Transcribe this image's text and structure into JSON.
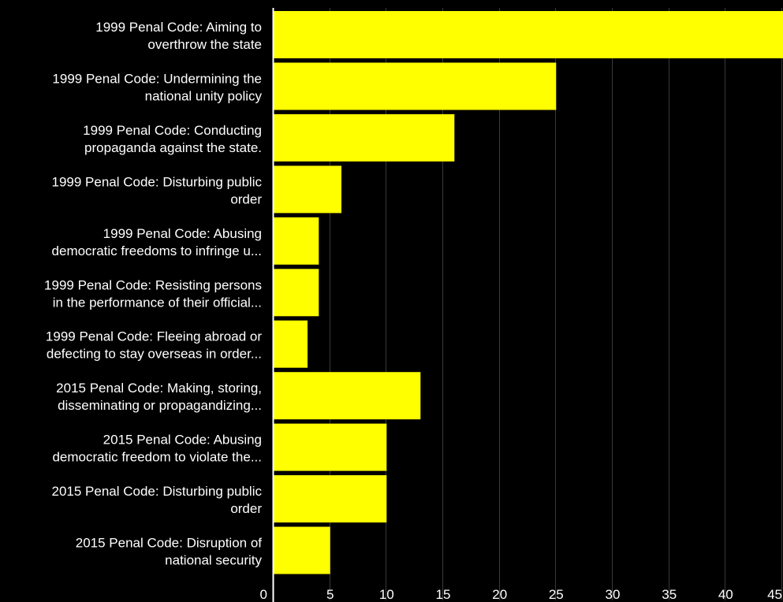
{
  "chart_data": {
    "type": "bar",
    "orientation": "horizontal",
    "categories": [
      [
        "1999 Penal Code: Aiming to",
        "overthrow the state"
      ],
      [
        "1999 Penal Code: Undermining the",
        "national unity policy"
      ],
      [
        "1999 Penal Code: Conducting",
        "propaganda against the state."
      ],
      [
        "1999 Penal Code: Disturbing public",
        "order"
      ],
      [
        "1999 Penal Code: Abusing",
        "democratic freedoms to infringe u..."
      ],
      [
        "1999 Penal Code: Resisting persons",
        "in the performance of their official..."
      ],
      [
        "1999 Penal Code: Fleeing abroad or",
        "defecting to stay overseas in order..."
      ],
      [
        "2015 Penal Code: Making, storing,",
        "disseminating or propagandizing..."
      ],
      [
        "2015 Penal Code: Abusing",
        "democratic freedom to violate the..."
      ],
      [
        "2015 Penal Code: Disturbing public",
        "order"
      ],
      [
        "2015 Penal Code: Disruption of",
        "national security"
      ]
    ],
    "values": [
      47,
      25,
      16,
      6,
      4,
      4,
      3,
      13,
      10,
      10,
      5
    ],
    "xlim": [
      0,
      45
    ],
    "xticks": [
      0,
      5,
      10,
      15,
      20,
      25,
      30,
      35,
      40,
      45
    ],
    "grid": true,
    "colors": {
      "background": "#000000",
      "bar": "#ffff00",
      "grid": "#3a3a3a",
      "axis": "#ffffff",
      "text": "#ffffff"
    }
  }
}
